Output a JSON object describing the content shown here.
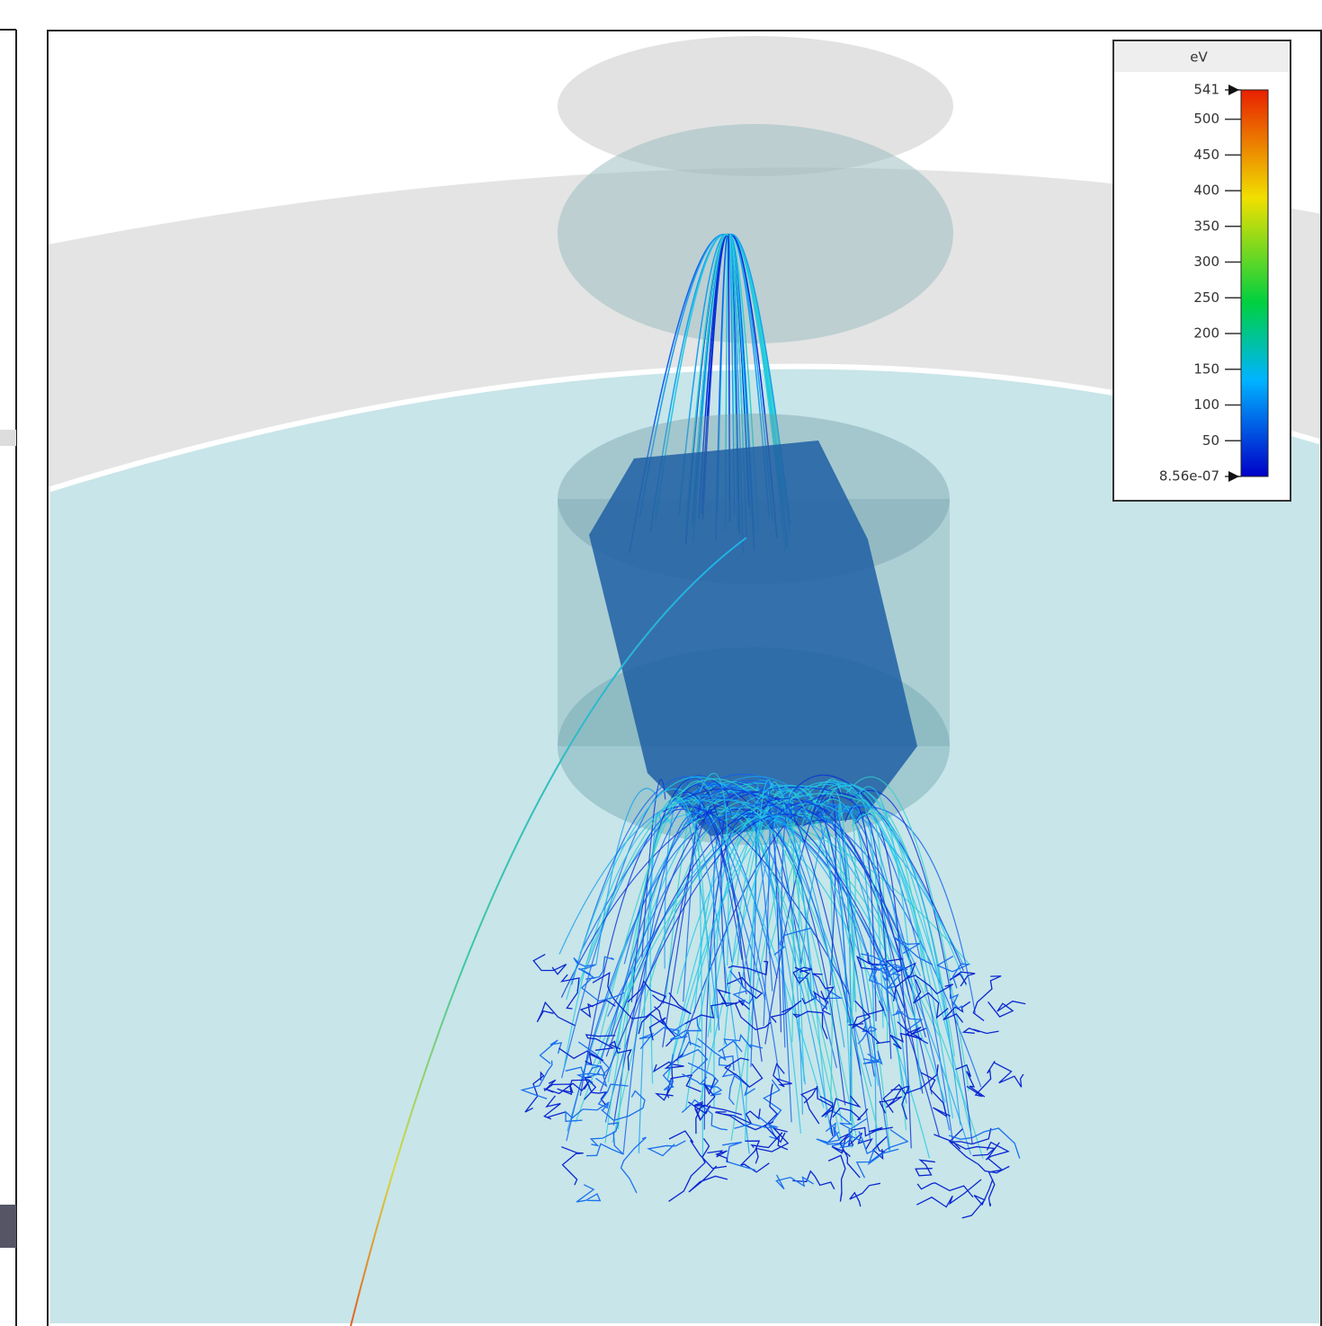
{
  "legend": {
    "title": "eV",
    "max": 541,
    "min": {
      "value": 8.56e-07,
      "label": "8.56e-07"
    },
    "ticks": [
      500,
      450,
      400,
      350,
      300,
      250,
      200,
      150,
      100,
      50
    ]
  }
}
